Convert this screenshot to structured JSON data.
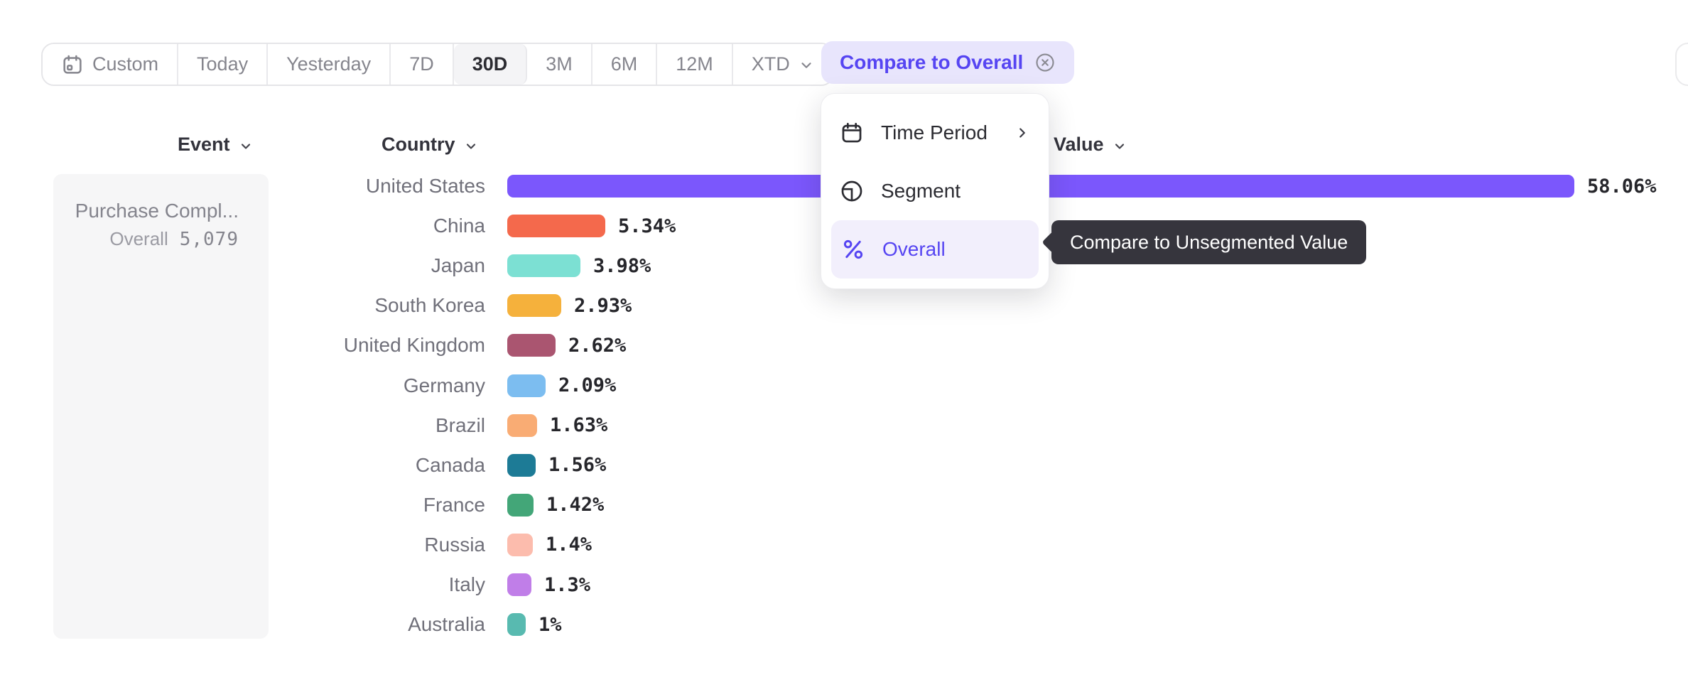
{
  "toolbar": {
    "ranges": [
      {
        "label": "Custom",
        "icon": "calendar"
      },
      {
        "label": "Today"
      },
      {
        "label": "Yesterday"
      },
      {
        "label": "7D"
      },
      {
        "label": "30D",
        "selected": true
      },
      {
        "label": "3M"
      },
      {
        "label": "6M"
      },
      {
        "label": "12M"
      },
      {
        "label": "XTD",
        "has_chevron": true
      }
    ],
    "compare": {
      "label": "Compare to Overall",
      "icon": "circle-x"
    }
  },
  "columns": {
    "event": "Event",
    "country": "Country",
    "value": "Value"
  },
  "event_panel": {
    "name": "Purchase Compl...",
    "overall_label": "Overall",
    "overall_value": "5,079"
  },
  "menu": {
    "items": [
      {
        "label": "Time Period",
        "icon": "calendar",
        "has_submenu": true
      },
      {
        "label": "Segment",
        "icon": "segment"
      },
      {
        "label": "Overall",
        "icon": "percent",
        "selected": true
      }
    ]
  },
  "tooltip": {
    "text": "Compare to Unsegmented Value"
  },
  "colors": {
    "accent_purple": "#5645f2",
    "compare_bg": "#e8e5fc",
    "menu_highlight_bg": "#f2effc",
    "tooltip_bg": "#36353d",
    "panel_bg": "#f6f6f7"
  },
  "chart_data": {
    "type": "bar",
    "orientation": "horizontal",
    "title": "",
    "xlabel": "Value",
    "ylabel": "Country",
    "xlim": [
      0,
      60
    ],
    "grid": false,
    "categories": [
      "United States",
      "China",
      "Japan",
      "South Korea",
      "United Kingdom",
      "Germany",
      "Brazil",
      "Canada",
      "France",
      "Russia",
      "Italy",
      "Australia"
    ],
    "values": [
      58.06,
      5.34,
      3.98,
      2.93,
      2.62,
      2.09,
      1.63,
      1.56,
      1.42,
      1.4,
      1.3,
      1.0
    ],
    "value_labels": [
      "58.06%",
      "5.34%",
      "3.98%",
      "2.93%",
      "2.62%",
      "2.09%",
      "1.63%",
      "1.56%",
      "1.42%",
      "1.4%",
      "1.3%",
      "1%"
    ],
    "colors": [
      "#7b57fc",
      "#f4694c",
      "#7ce0d3",
      "#f5b13c",
      "#aa5570",
      "#7cbdf0",
      "#f9ac74",
      "#1d7b96",
      "#43a678",
      "#fcbcad",
      "#c07ee8",
      "#58bab0"
    ]
  }
}
